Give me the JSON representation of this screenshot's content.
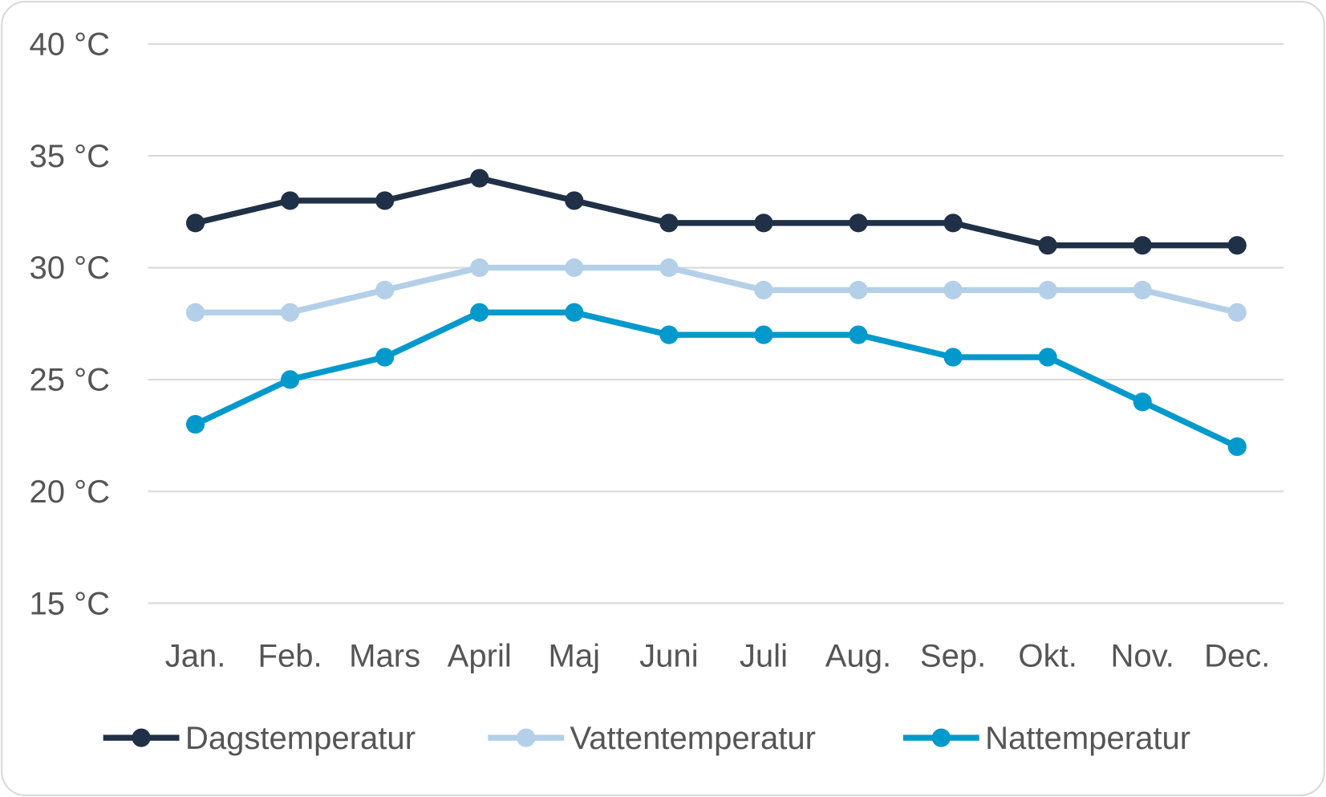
{
  "chart_data": {
    "type": "line",
    "title": "",
    "xlabel": "",
    "ylabel": "",
    "categories": [
      "Jan.",
      "Feb.",
      "Mars",
      "April",
      "Maj",
      "Juni",
      "Juli",
      "Aug.",
      "Sep.",
      "Okt.",
      "Nov.",
      "Dec."
    ],
    "ylim": [
      15,
      40
    ],
    "yticks": [
      15,
      20,
      25,
      30,
      35,
      40
    ],
    "ytick_labels": [
      "15 °C",
      "20 °C",
      "25 °C",
      "30 °C",
      "35 °C",
      "40 °C"
    ],
    "grid": true,
    "legend_position": "bottom",
    "series": [
      {
        "name": "Dagstemperatur",
        "color": "#203046",
        "values": [
          32,
          33,
          33,
          34,
          33,
          32,
          32,
          32,
          32,
          31,
          31,
          31
        ]
      },
      {
        "name": "Vattentemperatur",
        "color": "#b4cfe8",
        "values": [
          28,
          28,
          29,
          30,
          30,
          30,
          29,
          29,
          29,
          29,
          29,
          28
        ]
      },
      {
        "name": "Nattemperatur",
        "color": "#0099cc",
        "values": [
          23,
          25,
          26,
          28,
          28,
          27,
          27,
          27,
          26,
          26,
          24,
          22
        ]
      }
    ]
  }
}
